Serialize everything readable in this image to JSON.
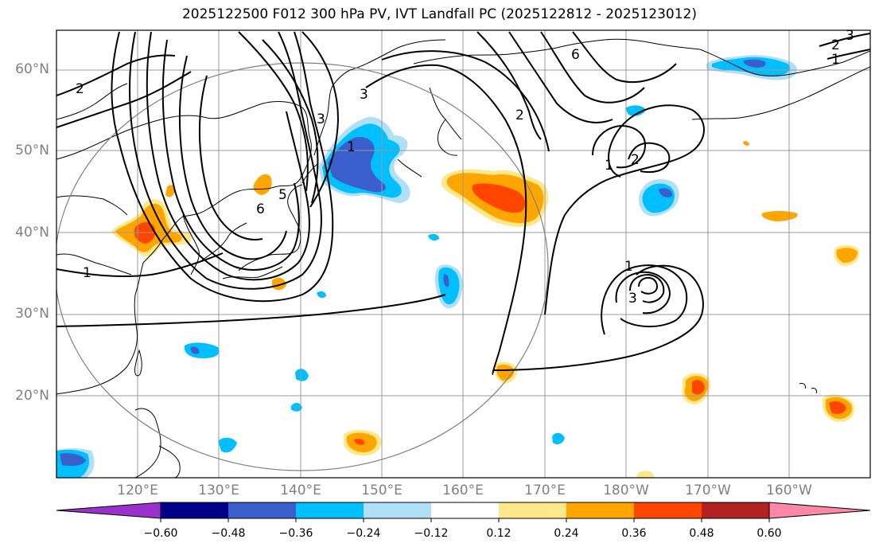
{
  "title": "2025122500 F012 300 hPa PV, IVT Landfall PC (2025122812 - 2025123012)",
  "lat_labels": [
    "60°N",
    "50°N",
    "40°N",
    "30°N",
    "20°N"
  ],
  "lon_labels": [
    "120°E",
    "130°E",
    "140°E",
    "150°E",
    "160°E",
    "170°E",
    "180°W",
    "170°W",
    "160°W"
  ],
  "contour_labels": [
    "1",
    "1",
    "2",
    "2",
    "2",
    "3",
    "3",
    "3",
    "3",
    "5",
    "6",
    "6",
    "1",
    "1",
    "1",
    "2",
    "3"
  ],
  "colorbar": {
    "colors": [
      "#9932cc",
      "#00008b",
      "#3a5fcd",
      "#00bfff",
      "#b0e0f8",
      "#ffffff",
      "#ffe88a",
      "#ffa500",
      "#ff4500",
      "#b22222",
      "#ff88aa"
    ],
    "labels": [
      "−0.60",
      "−0.48",
      "−0.36",
      "−0.24",
      "−0.12",
      "0.12",
      "0.24",
      "0.36",
      "0.48",
      "0.60"
    ]
  },
  "fill_colors": {
    "neg_light": "#b0e0f8",
    "neg_mid": "#00bfff",
    "neg_strong": "#3a5fcd",
    "pos_light": "#ffe88a",
    "pos_mid": "#ffa500",
    "pos_strong": "#ff4500"
  }
}
